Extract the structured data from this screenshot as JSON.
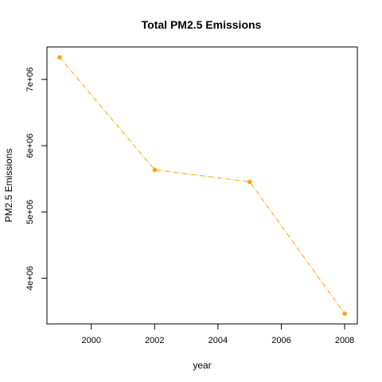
{
  "chart_data": {
    "type": "line",
    "title": "Total PM2.5 Emissions",
    "xlabel": "year",
    "ylabel": "PM2.5 Emissions",
    "x": [
      1999,
      2002,
      2005,
      2008
    ],
    "series": [
      {
        "values": [
          7332967,
          5635780,
          5454703,
          3464206
        ],
        "color": "#FFA500",
        "line_style": "dash-dot",
        "marker": "filled-circle"
      }
    ],
    "xlim": [
      1998.6,
      2008.4
    ],
    "ylim": [
      3310000,
      7490000
    ],
    "x_ticks": [
      2000,
      2002,
      2004,
      2006,
      2008
    ],
    "x_tick_labels": [
      "2000",
      "2002",
      "2004",
      "2006",
      "2008"
    ],
    "y_ticks": [
      4000000,
      5000000,
      6000000,
      7000000
    ],
    "y_tick_labels": [
      "4e+06",
      "5e+06",
      "6e+06",
      "7e+06"
    ],
    "grid": false,
    "legend": false
  }
}
